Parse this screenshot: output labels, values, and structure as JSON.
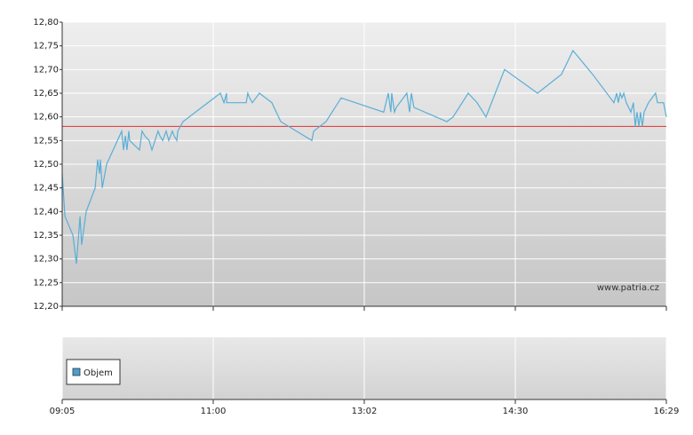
{
  "chart_data": [
    {
      "type": "line",
      "xlim": [
        0,
        4
      ],
      "xticks": [
        {
          "value": 0,
          "label": "09:05"
        },
        {
          "value": 1,
          "label": "11:00"
        },
        {
          "value": 2,
          "label": "13:02"
        },
        {
          "value": 3,
          "label": "14:30"
        },
        {
          "value": 4,
          "label": "16:29"
        }
      ],
      "ylim": [
        12.2,
        12.8
      ],
      "yticks": [
        {
          "value": 12.2,
          "label": "12,20"
        },
        {
          "value": 12.25,
          "label": "12,25"
        },
        {
          "value": 12.3,
          "label": "12,30"
        },
        {
          "value": 12.35,
          "label": "12,35"
        },
        {
          "value": 12.4,
          "label": "12,40"
        },
        {
          "value": 12.45,
          "label": "12,45"
        },
        {
          "value": 12.5,
          "label": "12,50"
        },
        {
          "value": 12.55,
          "label": "12,55"
        },
        {
          "value": 12.6,
          "label": "12,60"
        },
        {
          "value": 12.65,
          "label": "12,65"
        },
        {
          "value": 12.7,
          "label": "12,70"
        },
        {
          "value": 12.75,
          "label": "12,75"
        },
        {
          "value": 12.8,
          "label": "12,80"
        }
      ],
      "grid": true,
      "reference_line": {
        "value": 12.58,
        "color": "#e03030"
      },
      "annotation": "www.patria.cz",
      "series": [
        {
          "color": "#5aaed6",
          "x": [
            0,
            0.018,
            0.071,
            0.094,
            0.118,
            0.129,
            0.159,
            0.218,
            0.235,
            0.247,
            0.253,
            0.265,
            0.294,
            0.394,
            0.406,
            0.418,
            0.429,
            0.441,
            0.447,
            0.512,
            0.529,
            0.547,
            0.576,
            0.594,
            0.635,
            0.647,
            0.665,
            0.688,
            0.706,
            0.729,
            0.741,
            0.759,
            0.765,
            0.8,
            1.047,
            1.071,
            1.088,
            1.089,
            1.218,
            1.229,
            1.241,
            1.259,
            1.306,
            1.388,
            1.447,
            1.653,
            1.665,
            1.747,
            1.847,
            2.129,
            2.159,
            2.176,
            2.182,
            2.2,
            2.212,
            2.282,
            2.3,
            2.312,
            2.329,
            2.547,
            2.588,
            2.688,
            2.747,
            2.806,
            2.929,
            3.147,
            3.306,
            3.382,
            3.512,
            3.653,
            3.671,
            3.682,
            3.694,
            3.706,
            3.718,
            3.735,
            3.765,
            3.782,
            3.794,
            3.806,
            3.818,
            3.829,
            3.841,
            3.853,
            3.882,
            3.929,
            3.941,
            3.982,
            4
          ],
          "values": [
            12.48,
            12.39,
            12.35,
            12.29,
            12.39,
            12.33,
            12.4,
            12.45,
            12.51,
            12.48,
            12.51,
            12.45,
            12.5,
            12.57,
            12.53,
            12.56,
            12.53,
            12.57,
            12.55,
            12.53,
            12.57,
            12.56,
            12.55,
            12.53,
            12.57,
            12.56,
            12.55,
            12.57,
            12.55,
            12.57,
            12.56,
            12.55,
            12.57,
            12.59,
            12.65,
            12.63,
            12.65,
            12.63,
            12.63,
            12.65,
            12.64,
            12.63,
            12.65,
            12.63,
            12.59,
            12.55,
            12.57,
            12.59,
            12.64,
            12.61,
            12.65,
            12.61,
            12.65,
            12.61,
            12.62,
            12.65,
            12.61,
            12.65,
            12.62,
            12.59,
            12.6,
            12.65,
            12.63,
            12.6,
            12.7,
            12.65,
            12.69,
            12.74,
            12.69,
            12.63,
            12.65,
            12.63,
            12.65,
            12.64,
            12.65,
            12.63,
            12.61,
            12.63,
            12.58,
            12.61,
            12.58,
            12.61,
            12.58,
            12.61,
            12.63,
            12.65,
            12.63,
            12.63,
            12.6
          ]
        }
      ]
    },
    {
      "type": "bar",
      "series": [
        {
          "name": "Objem",
          "color": "#4a9fd0",
          "values": []
        }
      ]
    }
  ]
}
